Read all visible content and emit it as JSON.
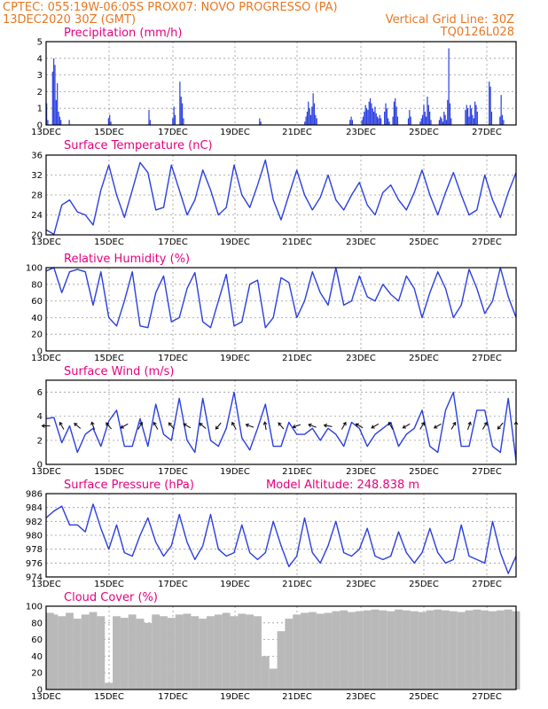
{
  "header": {
    "line1_left": "CPTEC:   055:19W-06:05S   PROX07: NOVO PROGRESSO (PA)",
    "line2_left": "13DEC2020 30Z (GMT)",
    "line2_right": "Vertical Grid Line: 30Z",
    "line3_right": "TQ0126L028"
  },
  "colors": {
    "series": "#2a3fe0",
    "bars": "#2a3fe0",
    "cloud": "#b9b9b9",
    "title": "#e6007e",
    "header": "#e87722"
  },
  "chart_data": [
    {
      "type": "bar",
      "title": "Precipitation (mm/h)",
      "ylim": [
        0,
        5
      ],
      "yticks": [
        0,
        1,
        2,
        3,
        4,
        5
      ],
      "xlim_days": [
        13,
        28
      ],
      "xtick_labels": [
        "13DEC",
        "15DEC",
        "17DEC",
        "19DEC",
        "21DEC",
        "23DEC",
        "25DEC",
        "27DEC"
      ],
      "values": [
        1.3,
        0.3,
        0,
        0,
        0,
        3.2,
        4.0,
        3.6,
        1.5,
        2.5,
        0.8,
        0.5,
        0.3,
        0,
        0,
        0,
        0,
        0,
        0,
        0.3,
        0,
        0,
        0,
        0,
        0,
        0,
        0,
        0,
        0,
        0,
        0,
        0,
        0,
        0,
        0,
        0,
        0,
        0,
        0,
        0,
        0,
        0,
        0,
        0,
        0,
        0,
        0,
        0,
        0,
        0,
        0,
        0,
        0.4,
        0.6,
        0.2,
        0,
        0,
        0,
        0,
        0,
        0,
        0,
        0,
        0,
        0,
        0,
        0,
        0,
        0,
        0,
        0,
        0,
        0,
        0,
        0,
        0,
        0,
        0,
        0,
        0,
        0,
        0,
        0,
        0,
        0,
        0,
        0.9,
        0.3,
        0,
        0,
        0,
        0,
        0,
        0,
        0,
        0,
        0,
        0,
        0,
        0,
        0,
        0,
        0,
        0,
        0,
        0,
        0.4,
        1.1,
        0.6,
        0,
        0,
        0,
        2.6,
        1.7,
        1.3,
        0.4,
        0,
        0,
        0,
        0,
        0,
        0,
        0,
        0,
        0,
        0,
        0,
        0,
        0,
        0,
        0,
        0,
        0,
        0,
        0,
        0,
        0,
        0,
        0,
        0,
        0,
        0,
        0,
        0,
        0,
        0,
        0,
        0,
        0,
        0,
        0,
        0,
        0,
        0,
        0,
        0,
        0,
        0,
        0,
        0,
        0,
        0,
        0,
        0,
        0,
        0,
        0,
        0,
        0,
        0,
        0,
        0,
        0,
        0,
        0,
        0,
        0,
        0,
        0,
        0.4,
        0.2,
        0,
        0,
        0,
        0,
        0,
        0,
        0,
        0,
        0,
        0,
        0,
        0,
        0,
        0,
        0,
        0,
        0,
        0,
        0,
        0,
        0,
        0,
        0,
        0,
        0,
        0,
        0,
        0,
        0,
        0,
        0,
        0,
        0,
        0,
        0,
        0,
        0.2,
        0.5,
        0.8,
        1.4,
        1.0,
        0.6,
        1.1,
        1.9,
        1.3,
        0.6,
        0.4,
        0,
        0,
        0,
        0,
        0,
        0,
        0,
        0,
        0,
        0,
        0,
        0,
        0,
        0,
        0,
        0,
        0,
        0,
        0,
        0,
        0,
        0,
        0,
        0,
        0,
        0,
        0,
        0.3,
        0.5,
        0.3,
        0,
        0,
        0,
        0,
        0,
        0,
        0,
        0.3,
        0.5,
        0.8,
        1.2,
        1.0,
        0.9,
        1.4,
        1.6,
        1.3,
        1.0,
        0.8,
        1.1,
        0.7,
        0.5,
        0.4,
        0.6,
        0.4,
        0,
        0,
        0.8,
        1.3,
        1.0,
        0.4,
        0.2,
        0,
        0,
        0.5,
        1.4,
        1.6,
        1.1,
        0.5,
        0,
        0,
        0,
        0,
        0,
        0,
        0,
        0,
        0.4,
        0.9,
        0.5,
        0,
        0,
        0,
        0,
        0,
        0,
        0,
        0.2,
        0.4,
        0.6,
        1.2,
        0.8,
        0.5,
        1.7,
        1.2,
        0.8,
        0.3,
        0,
        0,
        0,
        0,
        0,
        0,
        0.3,
        0.5,
        0.4,
        0.2,
        0.8,
        0.6,
        0.3,
        1.5,
        4.6,
        1.3,
        0.4,
        0,
        0,
        0,
        0,
        0,
        0,
        0,
        0,
        0,
        0,
        0,
        0.9,
        1.2,
        1.0,
        0.5,
        1.2,
        1.0,
        0.6,
        0.4,
        1.4,
        1.2,
        0.8,
        0,
        0,
        0,
        0,
        0,
        0,
        0,
        0,
        0,
        2.6,
        2.3,
        0.8,
        0,
        0,
        0,
        0,
        0,
        0,
        0.5,
        1.8,
        0.6,
        0.3,
        0,
        0,
        0,
        0,
        0,
        0,
        0,
        0,
        0,
        0
      ]
    },
    {
      "type": "line",
      "title": "Surface Temperature (nC)",
      "ylim": [
        20,
        36
      ],
      "yticks": [
        20,
        24,
        28,
        32,
        36
      ],
      "xlim_days": [
        13,
        28
      ],
      "xtick_labels": [
        "13DEC",
        "15DEC",
        "17DEC",
        "19DEC",
        "21DEC",
        "23DEC",
        "25DEC",
        "27DEC"
      ],
      "x_days": [
        13.0,
        13.25,
        13.5,
        13.75,
        14.0,
        14.25,
        14.5,
        14.75,
        15.0,
        15.25,
        15.5,
        15.75,
        16.0,
        16.25,
        16.5,
        16.75,
        17.0,
        17.25,
        17.5,
        17.75,
        18.0,
        18.25,
        18.5,
        18.75,
        19.0,
        19.25,
        19.5,
        19.75,
        20.0,
        20.25,
        20.5,
        20.75,
        21.0,
        21.25,
        21.5,
        21.75,
        22.0,
        22.25,
        22.5,
        22.75,
        23.0,
        23.25,
        23.5,
        23.75,
        24.0,
        24.25,
        24.5,
        24.75,
        25.0,
        25.25,
        25.5,
        25.75,
        26.0,
        26.25,
        26.5,
        26.75,
        27.0,
        27.25,
        27.5,
        27.75,
        28.0
      ],
      "values": [
        21.0,
        20.1,
        26.0,
        27.0,
        24.6,
        24.0,
        22.0,
        29.0,
        34.0,
        28.0,
        23.5,
        29.0,
        34.5,
        32.5,
        25.0,
        25.5,
        34.0,
        29.0,
        24.0,
        27.0,
        33.0,
        29.0,
        24.0,
        25.5,
        34.0,
        28.0,
        25.5,
        30.0,
        35.0,
        27.0,
        23.0,
        28.0,
        33.0,
        28.0,
        25.0,
        27.5,
        32.0,
        27.0,
        25.0,
        28.0,
        30.5,
        26.0,
        24.0,
        28.5,
        30.0,
        27.0,
        25.0,
        28.5,
        33.0,
        28.0,
        24.0,
        28.5,
        32.5,
        28.0,
        24.0,
        25.0,
        32.0,
        27.0,
        23.5,
        28.5,
        32.5
      ]
    },
    {
      "type": "line",
      "title": "Relative Humidity (%)",
      "ylim": [
        0,
        100
      ],
      "yticks": [
        0,
        20,
        40,
        60,
        80,
        100
      ],
      "xlim_days": [
        13,
        28
      ],
      "xtick_labels": [
        "13DEC",
        "15DEC",
        "17DEC",
        "19DEC",
        "21DEC",
        "23DEC",
        "25DEC",
        "27DEC"
      ],
      "x_days": [
        13.0,
        13.25,
        13.5,
        13.75,
        14.0,
        14.25,
        14.5,
        14.75,
        15.0,
        15.25,
        15.5,
        15.75,
        16.0,
        16.25,
        16.5,
        16.75,
        17.0,
        17.25,
        17.5,
        17.75,
        18.0,
        18.25,
        18.5,
        18.75,
        19.0,
        19.25,
        19.5,
        19.75,
        20.0,
        20.25,
        20.5,
        20.75,
        21.0,
        21.25,
        21.5,
        21.75,
        22.0,
        22.25,
        22.5,
        22.75,
        23.0,
        23.25,
        23.5,
        23.75,
        24.0,
        24.25,
        24.5,
        24.75,
        25.0,
        25.25,
        25.5,
        25.75,
        26.0,
        26.25,
        26.5,
        26.75,
        27.0,
        27.25,
        27.5,
        27.75,
        28.0
      ],
      "values": [
        96,
        100,
        70,
        95,
        98,
        95,
        55,
        95,
        40,
        30,
        60,
        95,
        30,
        28,
        70,
        90,
        35,
        40,
        75,
        94,
        35,
        28,
        60,
        92,
        30,
        35,
        80,
        85,
        28,
        40,
        88,
        82,
        40,
        60,
        95,
        70,
        55,
        100,
        55,
        60,
        90,
        65,
        60,
        80,
        68,
        60,
        90,
        75,
        40,
        70,
        95,
        75,
        40,
        55,
        98,
        75,
        45,
        60,
        100,
        65,
        40
      ]
    },
    {
      "type": "line",
      "title": "Surface Wind (m/s)",
      "ylim": [
        0,
        7
      ],
      "yticks": [
        0,
        2,
        4,
        6
      ],
      "xlim_days": [
        13,
        28
      ],
      "xtick_labels": [
        "13DEC",
        "15DEC",
        "17DEC",
        "19DEC",
        "21DEC",
        "23DEC",
        "25DEC",
        "27DEC"
      ],
      "x_days": [
        13.0,
        13.25,
        13.5,
        13.75,
        14.0,
        14.25,
        14.5,
        14.75,
        15.0,
        15.25,
        15.5,
        15.75,
        16.0,
        16.25,
        16.5,
        16.75,
        17.0,
        17.25,
        17.5,
        17.75,
        18.0,
        18.25,
        18.5,
        18.75,
        19.0,
        19.25,
        19.5,
        19.75,
        20.0,
        20.25,
        20.5,
        20.75,
        21.0,
        21.25,
        21.5,
        21.75,
        22.0,
        22.25,
        22.5,
        22.75,
        23.0,
        23.25,
        23.5,
        23.75,
        24.0,
        24.25,
        24.5,
        24.75,
        25.0,
        25.25,
        25.5,
        25.75,
        26.0,
        26.25,
        26.5,
        26.75,
        27.0,
        27.25,
        27.5,
        27.75,
        28.0
      ],
      "values": [
        3.8,
        3.9,
        1.8,
        3.2,
        1.0,
        2.5,
        3.0,
        1.5,
        3.6,
        4.5,
        1.5,
        1.5,
        3.8,
        1.5,
        5.0,
        2.5,
        2.0,
        5.5,
        2.0,
        1.0,
        5.5,
        2.0,
        1.5,
        3.0,
        6.0,
        2.2,
        1.2,
        3.0,
        5.0,
        1.5,
        1.5,
        3.5,
        2.5,
        2.5,
        3.0,
        2.0,
        3.0,
        2.5,
        1.5,
        3.5,
        3.0,
        1.5,
        2.5,
        3.0,
        3.5,
        1.5,
        2.5,
        3.0,
        4.5,
        1.5,
        1.0,
        4.5,
        6.0,
        1.5,
        1.5,
        4.5,
        4.5,
        1.5,
        1.0,
        5.5,
        0.3
      ],
      "arrow_dirs_deg": [
        180,
        150,
        120,
        160,
        140,
        200,
        110,
        150,
        130,
        160,
        210,
        230,
        60,
        170,
        120,
        45,
        130,
        210,
        150,
        60,
        140,
        200,
        230,
        60,
        120,
        70,
        160,
        210,
        100,
        150,
        130,
        110,
        200,
        130,
        160,
        220,
        170,
        110,
        60,
        120,
        150,
        130,
        210,
        240,
        120,
        130,
        210,
        70,
        60,
        130,
        210,
        120,
        60,
        170,
        70,
        220,
        60,
        150,
        230,
        120,
        90
      ]
    },
    {
      "type": "line",
      "title": "Surface Pressure (hPa)",
      "annotation": "Model Altitude: 248.838  m",
      "ylim": [
        974,
        986
      ],
      "yticks": [
        974,
        976,
        978,
        980,
        982,
        984,
        986
      ],
      "xlim_days": [
        13,
        28
      ],
      "xtick_labels": [
        "13DEC",
        "15DEC",
        "17DEC",
        "19DEC",
        "21DEC",
        "23DEC",
        "25DEC",
        "27DEC"
      ],
      "x_days": [
        13.0,
        13.25,
        13.5,
        13.75,
        14.0,
        14.25,
        14.5,
        14.75,
        15.0,
        15.25,
        15.5,
        15.75,
        16.0,
        16.25,
        16.5,
        16.75,
        17.0,
        17.25,
        17.5,
        17.75,
        18.0,
        18.25,
        18.5,
        18.75,
        19.0,
        19.25,
        19.5,
        19.75,
        20.0,
        20.25,
        20.5,
        20.75,
        21.0,
        21.25,
        21.5,
        21.75,
        22.0,
        22.25,
        22.5,
        22.75,
        23.0,
        23.25,
        23.5,
        23.75,
        24.0,
        24.25,
        24.5,
        24.75,
        25.0,
        25.25,
        25.5,
        25.75,
        26.0,
        26.25,
        26.5,
        26.75,
        27.0,
        27.25,
        27.5,
        27.75,
        28.0
      ],
      "values": [
        982.5,
        983.5,
        984.2,
        981.5,
        981.5,
        980.5,
        984.5,
        981.0,
        978.0,
        981.5,
        977.5,
        977.0,
        980.0,
        982.5,
        979.0,
        977.0,
        978.5,
        983.0,
        979.0,
        976.5,
        978.5,
        983.0,
        978.0,
        977.0,
        977.5,
        981.5,
        977.5,
        976.5,
        977.5,
        982.0,
        978.5,
        975.5,
        977.0,
        982.5,
        977.5,
        976.0,
        978.5,
        982.0,
        977.5,
        977.0,
        978.0,
        981.0,
        977.0,
        976.5,
        977.0,
        980.5,
        977.5,
        976.0,
        977.5,
        981.0,
        977.5,
        976.0,
        976.5,
        981.5,
        977.0,
        976.5,
        976.0,
        982.0,
        977.5,
        974.5,
        977.0
      ]
    },
    {
      "type": "area",
      "title": "Cloud Cover (%)",
      "ylim": [
        0,
        100
      ],
      "yticks": [
        0,
        20,
        40,
        60,
        80,
        100
      ],
      "xlim_days": [
        13,
        28
      ],
      "xtick_labels": [
        "13DEC",
        "15DEC",
        "17DEC",
        "19DEC",
        "21DEC",
        "23DEC",
        "25DEC",
        "27DEC"
      ],
      "x_days": [
        13.0,
        13.25,
        13.5,
        13.75,
        14.0,
        14.25,
        14.5,
        14.75,
        15.0,
        15.25,
        15.5,
        15.75,
        16.0,
        16.25,
        16.5,
        16.75,
        17.0,
        17.25,
        17.5,
        17.75,
        18.0,
        18.25,
        18.5,
        18.75,
        19.0,
        19.25,
        19.5,
        19.75,
        20.0,
        20.25,
        20.5,
        20.75,
        21.0,
        21.25,
        21.5,
        21.75,
        22.0,
        22.25,
        22.5,
        22.75,
        23.0,
        23.25,
        23.5,
        23.75,
        24.0,
        24.25,
        24.5,
        24.75,
        25.0,
        25.25,
        25.5,
        25.75,
        26.0,
        26.25,
        26.5,
        26.75,
        27.0,
        27.25,
        27.5,
        27.75,
        28.0
      ],
      "values": [
        92,
        90,
        88,
        92,
        85,
        90,
        93,
        88,
        8,
        88,
        86,
        90,
        85,
        80,
        90,
        88,
        86,
        90,
        91,
        88,
        85,
        88,
        90,
        92,
        88,
        91,
        90,
        88,
        40,
        25,
        70,
        85,
        90,
        92,
        93,
        91,
        92,
        94,
        95,
        93,
        94,
        95,
        96,
        95,
        94,
        96,
        95,
        94,
        93,
        95,
        96,
        95,
        94,
        93,
        95,
        96,
        95,
        94,
        95,
        96,
        94
      ]
    }
  ]
}
